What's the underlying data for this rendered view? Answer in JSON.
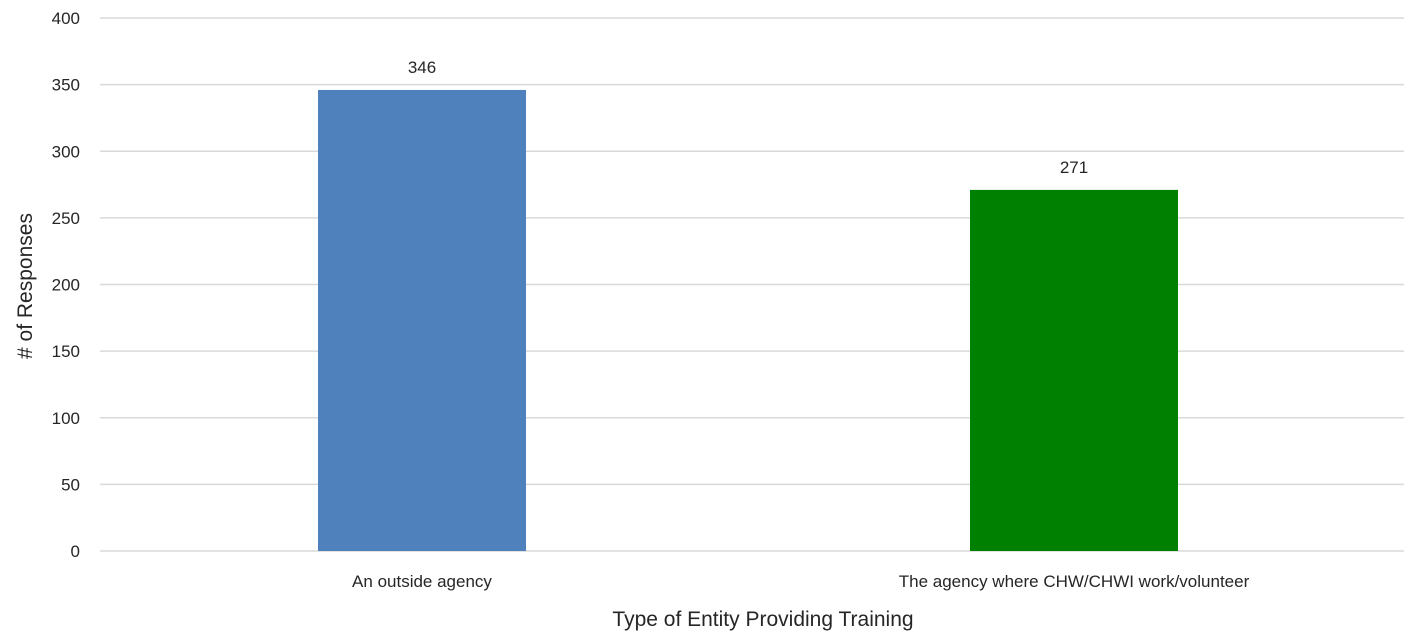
{
  "chart_data": {
    "type": "bar",
    "categories": [
      "An outside agency",
      "The agency where CHW/CHWI work/volunteer"
    ],
    "values": [
      346,
      271
    ],
    "data_labels": [
      "346",
      "271"
    ],
    "bar_colors": [
      "#4f81bd",
      "#008000"
    ],
    "xlabel": "Type of Entity Providing Training",
    "ylabel": "# of Responses",
    "ylim": [
      0,
      400
    ],
    "yticks": [
      0,
      50,
      100,
      150,
      200,
      250,
      300,
      350,
      400
    ],
    "grid": true,
    "legend": "none"
  }
}
